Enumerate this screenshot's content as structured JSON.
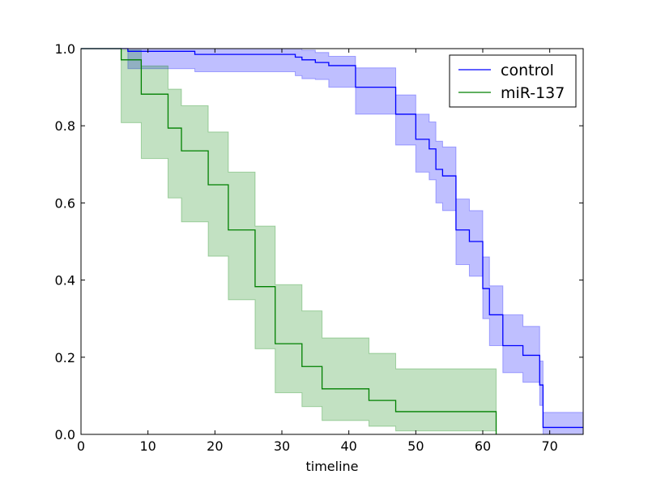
{
  "chart_data": {
    "type": "line",
    "subtype": "step-survival",
    "title": "",
    "xlabel": "timeline",
    "ylabel": "",
    "xlim": [
      0,
      75
    ],
    "ylim": [
      0,
      1.0
    ],
    "x_ticks": [
      0,
      10,
      20,
      30,
      40,
      50,
      60,
      70
    ],
    "y_ticks": [
      0.0,
      0.2,
      0.4,
      0.6,
      0.8,
      1.0
    ],
    "x_tick_labels": [
      "0",
      "10",
      "20",
      "30",
      "40",
      "50",
      "60",
      "70"
    ],
    "y_tick_labels": [
      "0.0",
      "0.2",
      "0.4",
      "0.6",
      "0.8",
      "1.0"
    ],
    "legend_position": "top-right",
    "series": [
      {
        "name": "control",
        "color": "#0000ff",
        "band_color": "#0000ff",
        "x": [
          0,
          7,
          17,
          32,
          33,
          35,
          37,
          41,
          44,
          47,
          50,
          52,
          53,
          54,
          56,
          58,
          60,
          60.5,
          61,
          63,
          66,
          68,
          68.5,
          69,
          75
        ],
        "y": [
          1.0,
          0.993,
          0.985,
          0.978,
          0.971,
          0.964,
          0.956,
          0.9,
          0.9,
          0.83,
          0.765,
          0.74,
          0.687,
          0.67,
          0.53,
          0.5,
          0.378,
          0.378,
          0.31,
          0.23,
          0.205,
          0.205,
          0.128,
          0.018,
          0.018
        ],
        "lower": [
          1.0,
          0.948,
          0.94,
          0.93,
          0.922,
          0.92,
          0.9,
          0.83,
          0.83,
          0.75,
          0.68,
          0.66,
          0.6,
          0.58,
          0.44,
          0.41,
          0.3,
          0.3,
          0.23,
          0.16,
          0.135,
          0.135,
          0.075,
          0.0,
          0.0
        ],
        "upper": [
          1.0,
          1.0,
          1.0,
          1.0,
          0.996,
          0.99,
          0.98,
          0.95,
          0.95,
          0.88,
          0.83,
          0.81,
          0.76,
          0.745,
          0.61,
          0.58,
          0.46,
          0.46,
          0.385,
          0.31,
          0.28,
          0.28,
          0.19,
          0.057,
          0.057
        ]
      },
      {
        "name": "miR-137",
        "color": "#008000",
        "band_color": "#008000",
        "x": [
          0,
          6,
          7,
          9,
          13,
          15,
          19,
          22,
          26,
          29,
          33,
          36,
          43,
          47,
          62
        ],
        "y": [
          1.0,
          0.971,
          0.971,
          0.882,
          0.794,
          0.735,
          0.647,
          0.53,
          0.383,
          0.235,
          0.176,
          0.118,
          0.088,
          0.059,
          0.0
        ],
        "lower": [
          1.0,
          0.808,
          0.808,
          0.715,
          0.613,
          0.551,
          0.462,
          0.349,
          0.222,
          0.108,
          0.072,
          0.036,
          0.021,
          0.009,
          0.0
        ],
        "upper": [
          1.0,
          0.996,
          0.996,
          0.955,
          0.895,
          0.852,
          0.784,
          0.68,
          0.54,
          0.388,
          0.32,
          0.25,
          0.21,
          0.17,
          0.0
        ]
      }
    ]
  }
}
